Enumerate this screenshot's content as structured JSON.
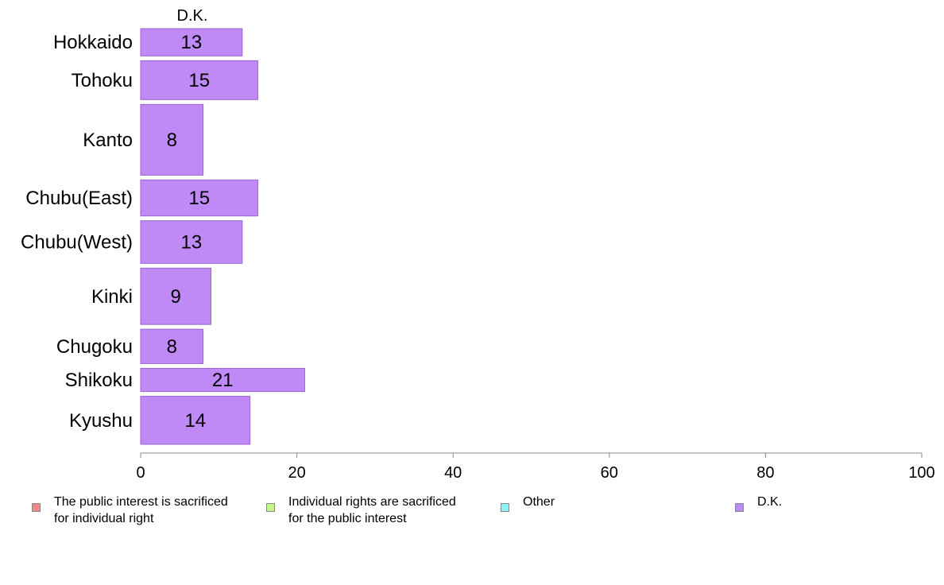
{
  "chart_data": {
    "type": "bar",
    "orientation": "horizontal",
    "stacked": true,
    "categories": [
      "Hokkaido",
      "Tohoku",
      "Kanto",
      "Chubu(East)",
      "Chubu(West)",
      "Kinki",
      "Chugoku",
      "Shikoku",
      "Kyushu"
    ],
    "category_weights": [
      0.66,
      0.94,
      1.71,
      0.87,
      1.03,
      1.36,
      0.83,
      0.56,
      1.16
    ],
    "series": [
      {
        "name": "The public interest is sacrificed\nfor individual right",
        "color": "#f08a8a",
        "values": [
          null,
          null,
          null,
          null,
          null,
          null,
          null,
          null,
          null
        ]
      },
      {
        "name": "Individual rights are sacrificed\nfor the public interest",
        "color": "#c4f58a",
        "values": [
          null,
          null,
          null,
          null,
          null,
          null,
          null,
          null,
          null
        ]
      },
      {
        "name": "Other",
        "color": "#8af5f5",
        "values": [
          null,
          null,
          null,
          null,
          null,
          null,
          null,
          null,
          null
        ]
      },
      {
        "name": "D.K.",
        "color": "#bf8af5",
        "values": [
          13,
          15,
          8,
          15,
          13,
          9,
          8,
          21,
          14
        ]
      }
    ],
    "visible_series": [
      3
    ],
    "data_labels": [
      "13",
      "15",
      "8",
      "15",
      "13",
      "9",
      "8",
      "21",
      "14"
    ],
    "column_header": "D.K.",
    "xlim": [
      0,
      100
    ],
    "xticks": [
      0,
      20,
      40,
      60,
      80,
      100
    ],
    "grid": false,
    "legend_position": "bottom"
  }
}
